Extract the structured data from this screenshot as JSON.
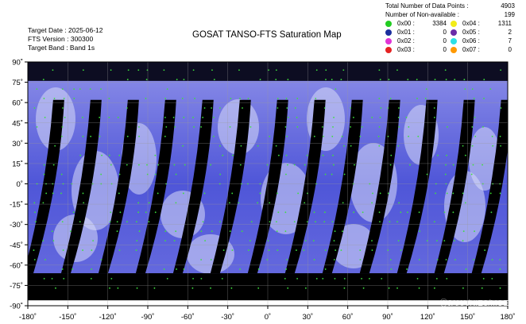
{
  "header": {
    "target_date": "Target Date : 2025-06-12",
    "fts_version": "FTS Version : 300300",
    "target_band": "Target Band : Band 1s",
    "title": "GOSAT TANSO-FTS Saturation Map"
  },
  "stats": {
    "total_label": "Total Number of Data Points :",
    "total_value": "4903",
    "nonavail_label": "Number of Non-available :",
    "nonavail_value": "199"
  },
  "flags": [
    {
      "code": "0x00 :",
      "value": "3384",
      "color": "#22cc22"
    },
    {
      "code": "0x04 :",
      "value": "1311",
      "color": "#f2ec19"
    },
    {
      "code": "0x01 :",
      "value": "0",
      "color": "#1b2f9e"
    },
    {
      "code": "0x05 :",
      "value": "2",
      "color": "#6a2ba8"
    },
    {
      "code": "0x02 :",
      "value": "0",
      "color": "#e034d6"
    },
    {
      "code": "0x06 :",
      "value": "7",
      "color": "#2de0e6"
    },
    {
      "code": "0x03 :",
      "value": "0",
      "color": "#e52222"
    },
    {
      "code": "0x07 :",
      "value": "0",
      "color": "#ff9900"
    }
  ],
  "map": {
    "lon_ticks": [
      "-180˚",
      "-150˚",
      "-120˚",
      "-90˚",
      "-60˚",
      "-30˚",
      "0˚",
      "30˚",
      "60˚",
      "90˚",
      "120˚",
      "150˚",
      "180˚"
    ],
    "lat_ticks": [
      "90˚",
      "75˚",
      "60˚",
      "45˚",
      "30˚",
      "15˚",
      "0˚",
      "-15˚",
      "-30˚",
      "-45˚",
      "-60˚",
      "-75˚",
      "-90˚"
    ],
    "lon_range": [
      -180,
      180
    ],
    "lat_range": [
      -90,
      90
    ],
    "copyright": "ⒸJAXA/NIES/MOE"
  },
  "colors": {
    "cloud_blue": "#5a5fe0",
    "night_black": "#000000",
    "grid": "#9a9a9a"
  }
}
